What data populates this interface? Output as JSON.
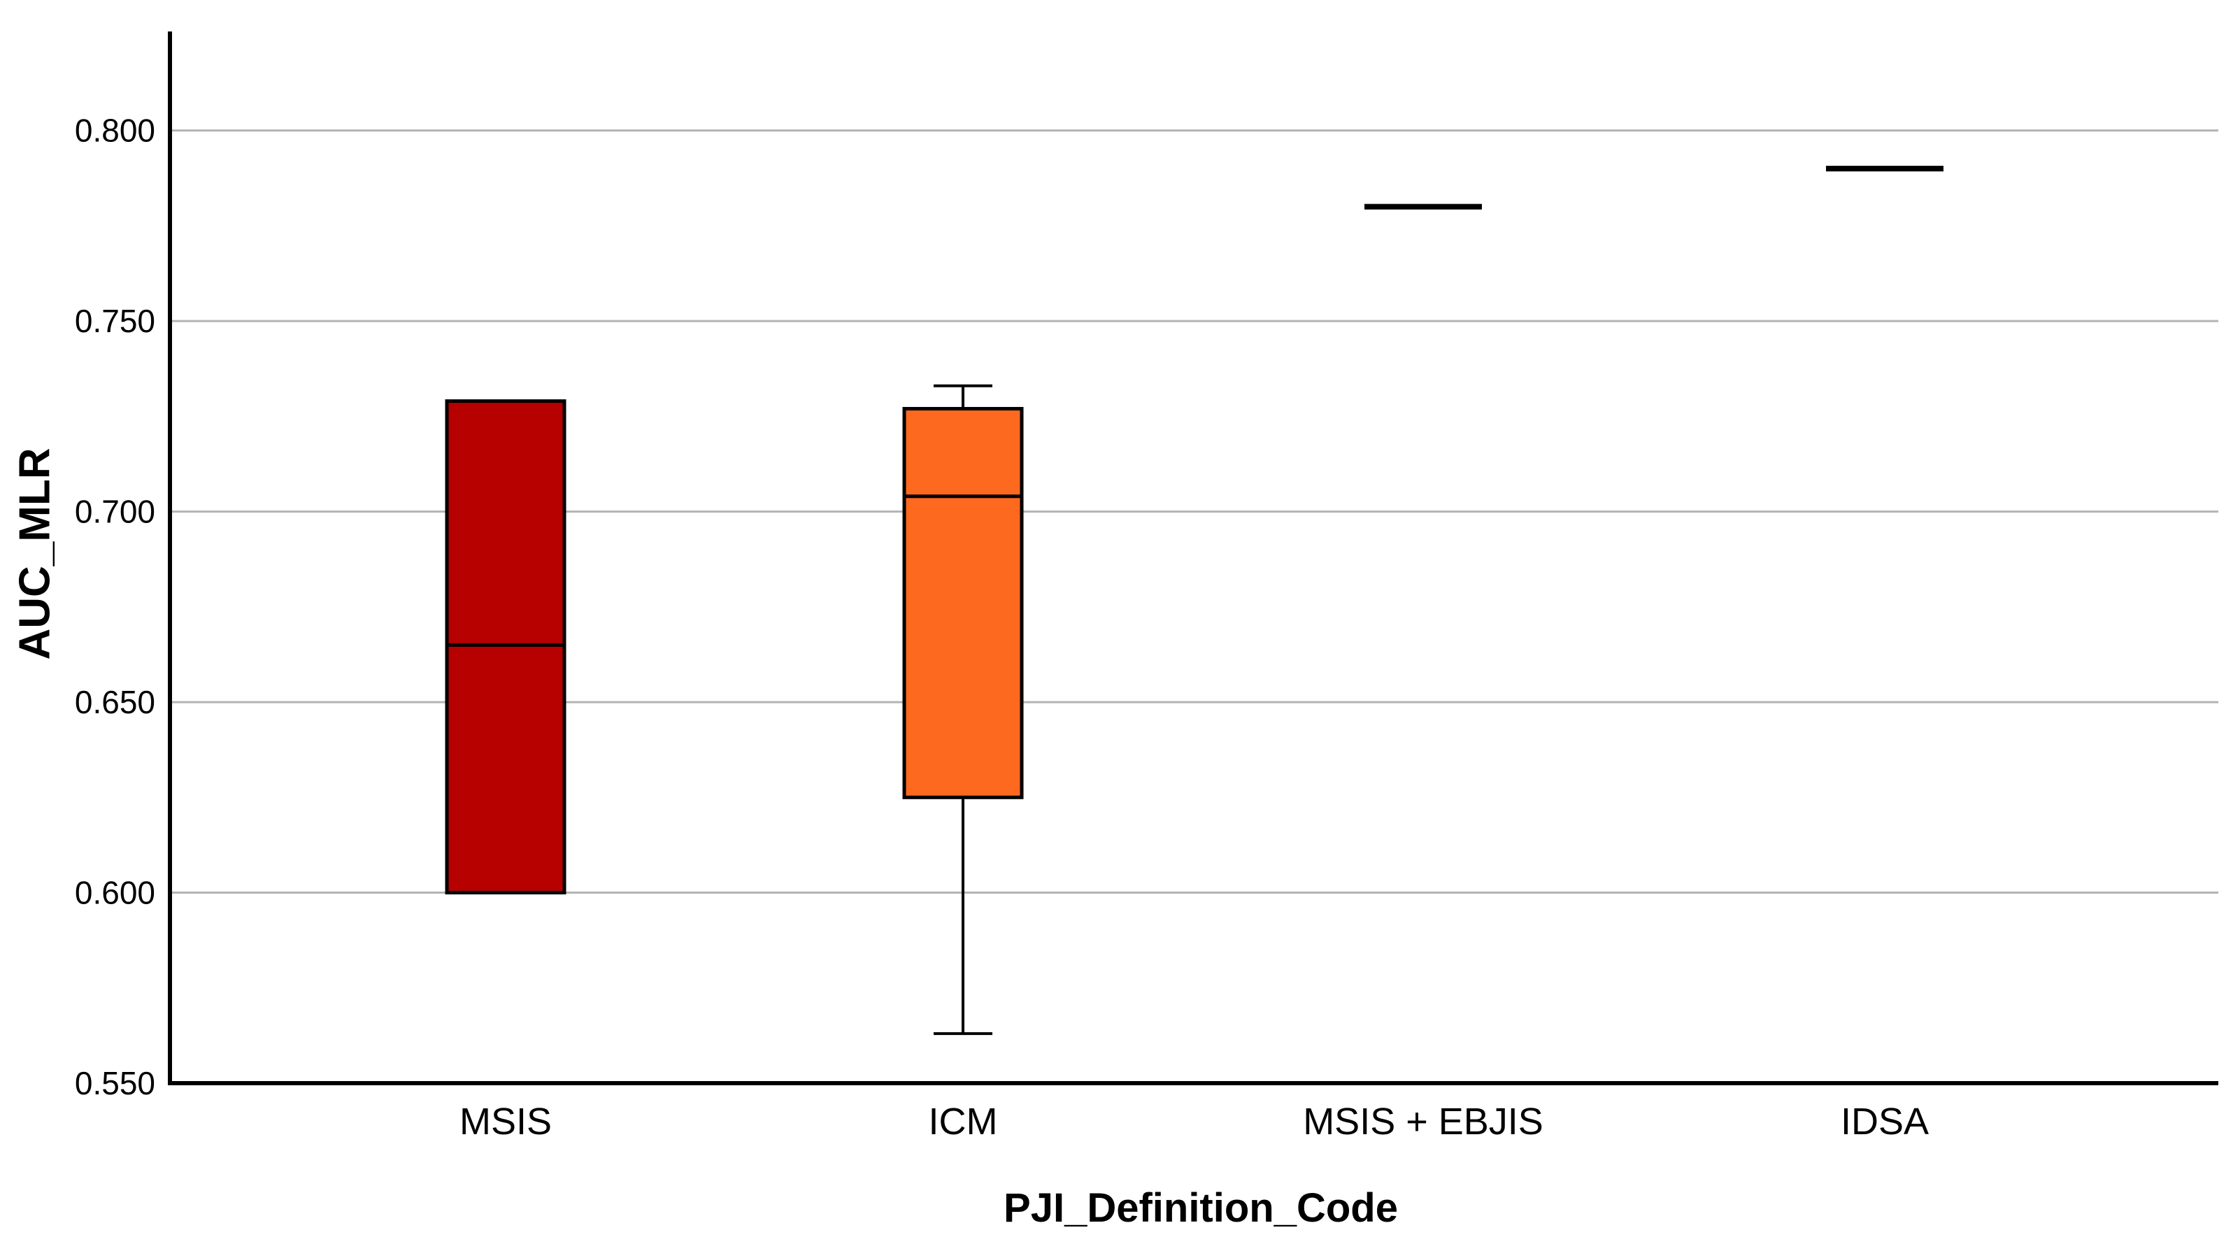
{
  "figure": {
    "background_color": "#ffffff"
  },
  "chart_data": {
    "type": "boxplot",
    "title": "",
    "xlabel": "PJI_Definition_Code",
    "ylabel": "AUC_MLR",
    "ylim": [
      0.55,
      0.826
    ],
    "yticks": [
      0.55,
      0.6,
      0.65,
      0.7,
      0.75,
      0.8
    ],
    "ytick_labels": [
      "0.550",
      "0.600",
      "0.650",
      "0.700",
      "0.750",
      "0.800"
    ],
    "grid": "horizontal gridlines at each y tick above axis, no vertical gridlines",
    "legend": "none",
    "categories": [
      "MSIS",
      "ICM",
      "MSIS + EBJIS",
      "IDSA"
    ],
    "series": [
      {
        "category": "MSIS",
        "style": "box",
        "box_color": "#b70000",
        "q1": 0.6,
        "median": 0.665,
        "q3": 0.729,
        "whisker_low": null,
        "whisker_high": null
      },
      {
        "category": "ICM",
        "style": "box",
        "box_color": "#fd691e",
        "q1": 0.625,
        "median": 0.704,
        "q3": 0.727,
        "whisker_low": 0.563,
        "whisker_high": 0.733
      },
      {
        "category": "MSIS + EBJIS",
        "style": "median-line",
        "box_color": "#000000",
        "q1": null,
        "median": 0.78,
        "q3": null,
        "whisker_low": null,
        "whisker_high": null
      },
      {
        "category": "IDSA",
        "style": "median-line",
        "box_color": "#000000",
        "q1": null,
        "median": 0.79,
        "q3": null,
        "whisker_low": null,
        "whisker_high": null
      }
    ],
    "colors": {
      "axis_line": "#000000",
      "gridline": "#b3b3b3",
      "box_outline": "#000000",
      "median_line": "#000000",
      "whisker": "#000000",
      "text": "#000000"
    }
  }
}
